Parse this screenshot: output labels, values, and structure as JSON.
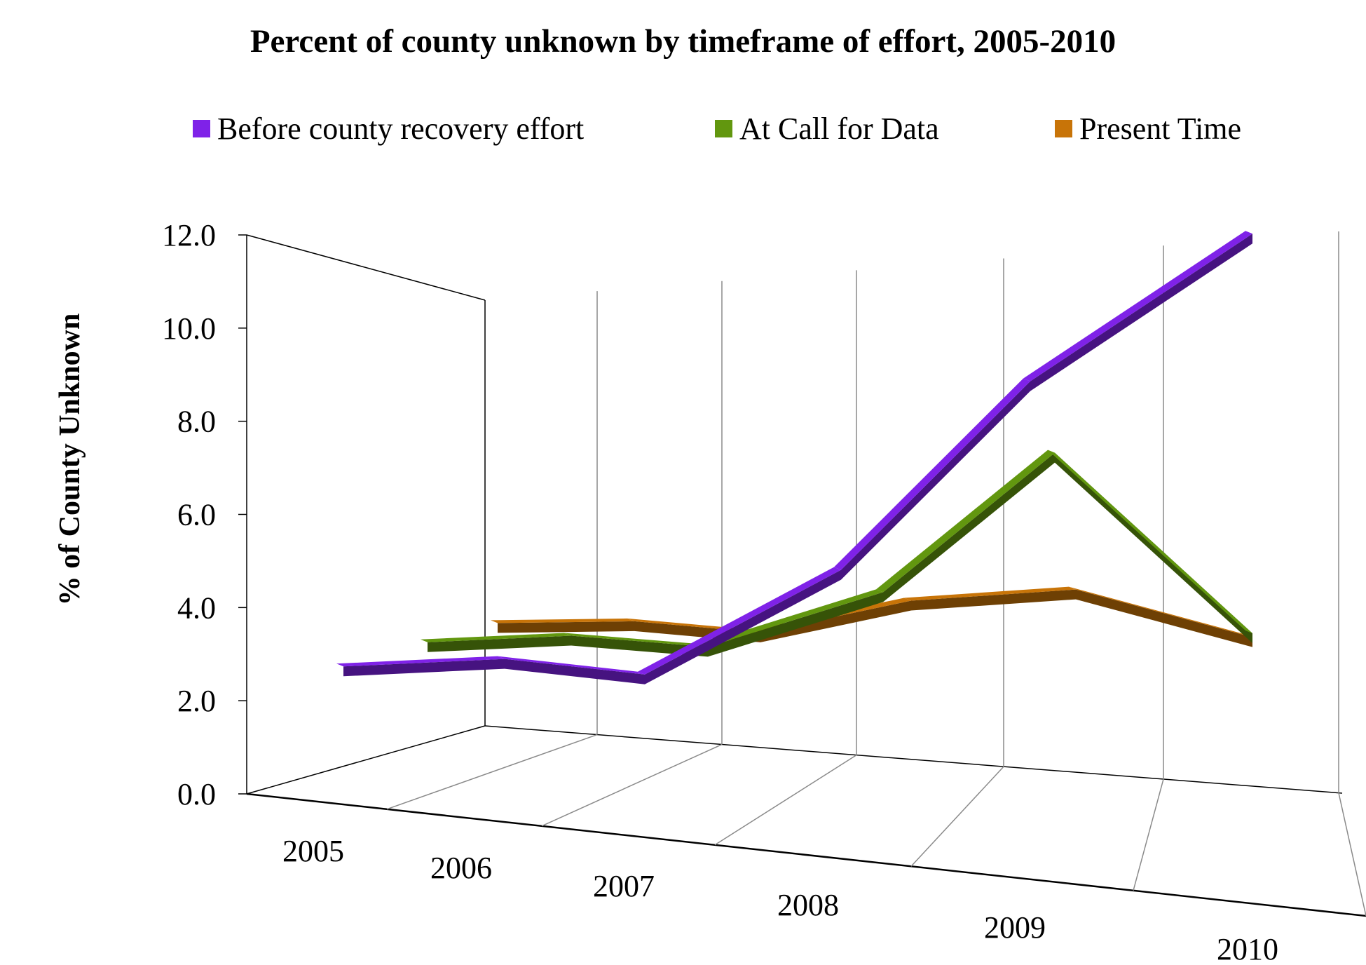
{
  "chart_data": {
    "type": "line",
    "title": "Percent of county unknown by timeframe of effort, 2005-2010",
    "xlabel": "",
    "ylabel": "% of County Unknown",
    "categories": [
      "2005",
      "2006",
      "2007",
      "2008",
      "2009",
      "2010"
    ],
    "ylim": [
      0,
      12
    ],
    "yticks": [
      "0.0",
      "2.0",
      "4.0",
      "6.0",
      "8.0",
      "10.0",
      "12.0"
    ],
    "grid": true,
    "legend_position": "top",
    "series": [
      {
        "name": "Before county recovery effort",
        "color": "#7f22e8",
        "values": [
          2.7,
          2.7,
          2.2,
          4.4,
          8.7,
          12.2
        ]
      },
      {
        "name": "At Call for Data",
        "color": "#62970f",
        "values": [
          3.0,
          3.0,
          2.6,
          3.7,
          6.9,
          2.3
        ]
      },
      {
        "name": "Present Time",
        "color": "#c87408",
        "values": [
          3.2,
          3.1,
          2.7,
          3.3,
          3.4,
          2.0
        ]
      }
    ]
  }
}
